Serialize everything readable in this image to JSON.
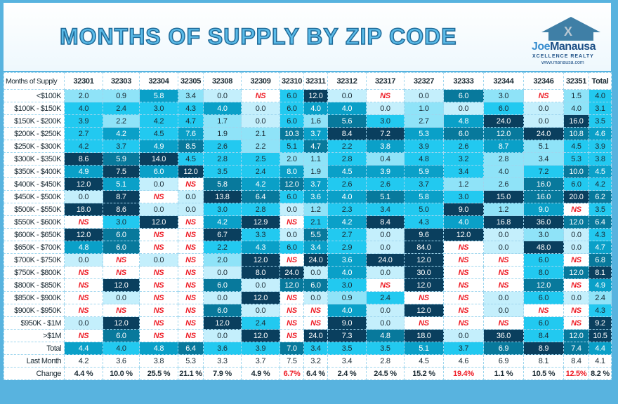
{
  "title": "MONTHS OF SUPPLY BY ZIP CODE",
  "logo": {
    "name_first": "Joe",
    "name_last": "Manausa",
    "tagline": "XCELLENCE REALTY",
    "url": "www.manausa.com"
  },
  "colors": {
    "zero": "#c4effc",
    "low": "#8fe3f8",
    "mid_low": "#22c9f0",
    "mid": "#0aa0c8",
    "high": "#08799c",
    "very_high": "#0a3f5e",
    "ns_text": "#ee1c25"
  },
  "chart_data": {
    "type": "heatmap",
    "corner_label": "Months of Supply",
    "columns": [
      "32301",
      "32303",
      "32304",
      "32305",
      "32308",
      "32309",
      "32310",
      "32311",
      "32312",
      "32317",
      "32327",
      "32333",
      "32344",
      "32346",
      "32351",
      "Total"
    ],
    "rows": [
      {
        "label": "<$100K",
        "values": [
          "2.0",
          "0.9",
          "5.8",
          "3.4",
          "0.0",
          "NS",
          "6.0",
          "12.0",
          "0.0",
          "NS",
          "0.0",
          "6.0",
          "3.0",
          "NS",
          "1.5",
          "4.0"
        ]
      },
      {
        "label": "$100K - $150K",
        "values": [
          "4.0",
          "2.4",
          "3.0",
          "4.3",
          "4.0",
          "0.0",
          "6.0",
          "4.0",
          "4.0",
          "0.0",
          "1.0",
          "0.0",
          "6.0",
          "0.0",
          "4.0",
          "3.1"
        ]
      },
      {
        "label": "$150K - $200K",
        "values": [
          "3.9",
          "2.2",
          "4.2",
          "4.7",
          "1.7",
          "0.0",
          "6.0",
          "1.6",
          "5.6",
          "3.0",
          "2.7",
          "4.8",
          "24.0",
          "0.0",
          "16.0",
          "3.5"
        ]
      },
      {
        "label": "$200K - $250K",
        "values": [
          "2.7",
          "4.2",
          "4.5",
          "7.6",
          "1.9",
          "2.1",
          "10.3",
          "3.7",
          "8.4",
          "7.2",
          "5.3",
          "6.0",
          "12.0",
          "24.0",
          "10.8",
          "4.6"
        ]
      },
      {
        "label": "$250K - $300K",
        "values": [
          "4.2",
          "3.7",
          "4.9",
          "8.5",
          "2.6",
          "2.2",
          "5.1",
          "4.7",
          "2.2",
          "3.8",
          "3.9",
          "2.6",
          "8.7",
          "5.1",
          "4.5",
          "3.9"
        ]
      },
      {
        "label": "$300K - $350K",
        "values": [
          "8.6",
          "5.9",
          "14.0",
          "4.5",
          "2.8",
          "2.5",
          "2.0",
          "1.1",
          "2.8",
          "0.4",
          "4.8",
          "3.2",
          "2.8",
          "3.4",
          "5.3",
          "3.8"
        ]
      },
      {
        "label": "$350K - $400K",
        "values": [
          "4.9",
          "7.5",
          "6.0",
          "12.0",
          "3.5",
          "2.4",
          "8.0",
          "1.9",
          "4.5",
          "3.9",
          "5.9",
          "3.4",
          "4.0",
          "7.2",
          "10.0",
          "4.5"
        ]
      },
      {
        "label": "$400K - $450K",
        "values": [
          "12.0",
          "5.1",
          "0.0",
          "NS",
          "5.8",
          "4.2",
          "12.0",
          "3.7",
          "2.6",
          "2.6",
          "3.7",
          "1.2",
          "2.6",
          "16.0",
          "6.0",
          "4.2"
        ]
      },
      {
        "label": "$450K - $500K",
        "values": [
          "0.0",
          "8.7",
          "NS",
          "0.0",
          "13.8",
          "6.4",
          "6.0",
          "3.6",
          "4.0",
          "5.1",
          "5.8",
          "3.0",
          "15.0",
          "16.0",
          "20.0",
          "6.2"
        ]
      },
      {
        "label": "$500K - $550K",
        "values": [
          "18.0",
          "8.6",
          "0.0",
          "0.0",
          "3.0",
          "2.8",
          "0.0",
          "1.2",
          "2.3",
          "3.4",
          "5.0",
          "9.0",
          "1.2",
          "9.0",
          "NS",
          "3.5"
        ]
      },
      {
        "label": "$550K - $600K",
        "values": [
          "NS",
          "3.0",
          "12.0",
          "NS",
          "4.2",
          "12.9",
          "NS",
          "2.1",
          "4.2",
          "8.4",
          "4.3",
          "4.0",
          "16.8",
          "36.0",
          "12.0",
          "6.4"
        ]
      },
      {
        "label": "$600K - $650K",
        "values": [
          "12.0",
          "6.0",
          "NS",
          "NS",
          "6.7",
          "3.3",
          "0.0",
          "5.5",
          "2.7",
          "0.0",
          "9.6",
          "12.0",
          "0.0",
          "3.0",
          "0.0",
          "4.3"
        ]
      },
      {
        "label": "$650K - $700K",
        "values": [
          "4.8",
          "6.0",
          "NS",
          "NS",
          "2.2",
          "4.3",
          "6.0",
          "3.4",
          "2.9",
          "0.0",
          "84.0",
          "NS",
          "0.0",
          "48.0",
          "0.0",
          "4.7"
        ]
      },
      {
        "label": "$700K - $750K",
        "values": [
          "0.0",
          "NS",
          "0.0",
          "NS",
          "2.0",
          "12.0",
          "NS",
          "24.0",
          "3.6",
          "24.0",
          "12.0",
          "NS",
          "NS",
          "6.0",
          "NS",
          "6.8"
        ]
      },
      {
        "label": "$750K - $800K",
        "values": [
          "NS",
          "NS",
          "NS",
          "NS",
          "0.0",
          "8.0",
          "24.0",
          "0.0",
          "4.0",
          "0.0",
          "30.0",
          "NS",
          "NS",
          "8.0",
          "12.0",
          "8.1"
        ]
      },
      {
        "label": "$800K - $850K",
        "values": [
          "NS",
          "12.0",
          "NS",
          "NS",
          "6.0",
          "0.0",
          "12.0",
          "6.0",
          "3.0",
          "NS",
          "12.0",
          "NS",
          "NS",
          "12.0",
          "NS",
          "4.9"
        ]
      },
      {
        "label": "$850K - $900K",
        "values": [
          "NS",
          "0.0",
          "NS",
          "NS",
          "0.0",
          "12.0",
          "NS",
          "0.0",
          "0.9",
          "2.4",
          "NS",
          "NS",
          "0.0",
          "6.0",
          "0.0",
          "2.4"
        ]
      },
      {
        "label": "$900K - $950K",
        "values": [
          "NS",
          "NS",
          "NS",
          "NS",
          "6.0",
          "0.0",
          "NS",
          "NS",
          "4.0",
          "0.0",
          "12.0",
          "NS",
          "0.0",
          "NS",
          "NS",
          "4.3"
        ]
      },
      {
        "label": "$950K - $1M",
        "values": [
          "0.0",
          "12.0",
          "NS",
          "NS",
          "12.0",
          "2.4",
          "NS",
          "NS",
          "9.0",
          "0.0",
          "NS",
          "NS",
          "NS",
          "6.0",
          "NS",
          "9.2"
        ]
      },
      {
        "label": ">$1M",
        "values": [
          "NS",
          "6.0",
          "NS",
          "NS",
          "0.0",
          "12.0",
          "NS",
          "24.0",
          "7.3",
          "4.8",
          "18.0",
          "0.0",
          "36.0",
          "8.4",
          "12.0",
          "10.5"
        ]
      }
    ],
    "total": {
      "label": "Total",
      "values": [
        "4.4",
        "4.0",
        "4.8",
        "6.4",
        "3.6",
        "3.9",
        "7.0",
        "3.4",
        "3.5",
        "3.5",
        "5.1",
        "3.7",
        "6.9",
        "8.9",
        "7.4",
        "4.4"
      ]
    },
    "last_month": {
      "label": "Last Month",
      "values": [
        "4.2",
        "3.6",
        "3.8",
        "5.3",
        "3.3",
        "3.7",
        "7.5",
        "3.2",
        "3.4",
        "2.8",
        "4.5",
        "4.6",
        "6.9",
        "8.1",
        "8.4",
        "4.1"
      ]
    },
    "change": {
      "label": "Change",
      "values": [
        "4.4 %",
        "10.0 %",
        "25.5 %",
        "21.1 %",
        "7.9 %",
        "4.9 %",
        "6.7%",
        "6.4 %",
        "2.4 %",
        "24.5 %",
        "15.2 %",
        "19.4%",
        "1.1 %",
        "10.5 %",
        "12.5%",
        "8.2 %"
      ],
      "highlighted_red": [
        false,
        false,
        false,
        false,
        false,
        false,
        true,
        false,
        false,
        false,
        false,
        true,
        false,
        false,
        true,
        false
      ]
    }
  }
}
